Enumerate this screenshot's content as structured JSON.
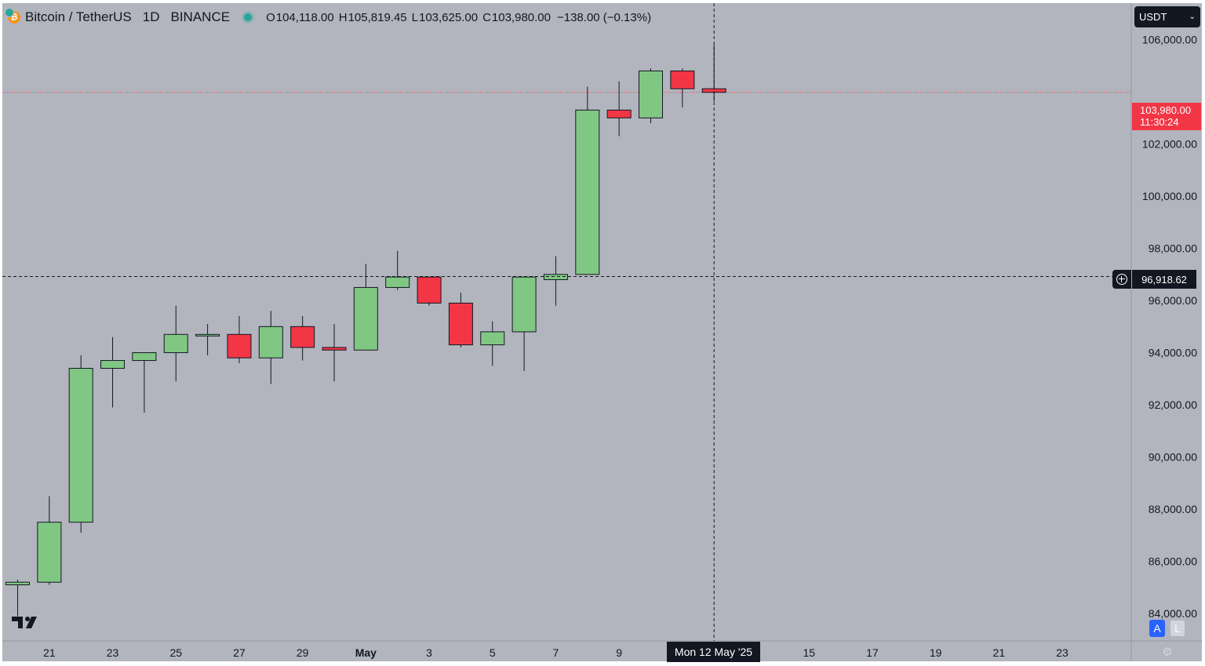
{
  "header": {
    "symbol": "Bitcoin / TetherUS",
    "timeframe": "1D",
    "exchange": "BINANCE",
    "open_label": "O",
    "open": "104,118.00",
    "high_label": "H",
    "high": "105,819.45",
    "low_label": "L",
    "low": "103,625.00",
    "close_label": "C",
    "close": "103,980.00",
    "change": "−138.00 (−0.13%)"
  },
  "toolbar": {
    "currency": "USDT",
    "auto_label": "A",
    "log_label": "L"
  },
  "last_price": {
    "value": "103,980.00",
    "countdown": "11:30:24"
  },
  "crosshair": {
    "price": "96,918.62",
    "date": "Mon 12 May '25",
    "price_value": 96918.62
  },
  "colors": {
    "up": "#81c784",
    "down": "#f23645",
    "background": "#b2b5be",
    "axis_bg": "#ffffff",
    "crosshair": "#131722"
  },
  "chart_data": {
    "type": "candlestick",
    "y_axis": {
      "ylim": [
        82950,
        107400
      ],
      "ticks": [
        84000,
        86000,
        88000,
        90000,
        92000,
        94000,
        96000,
        98000,
        100000,
        102000,
        104000,
        106000
      ],
      "tick_labels": [
        "84,000.00",
        "86,000.00",
        "88,000.00",
        "90,000.00",
        "92,000.00",
        "94,000.00",
        "96,000.00",
        "98,000.00",
        "100,000.00",
        "102,000.00",
        "",
        "106,000.00"
      ]
    },
    "x_axis": {
      "tick_labels": [
        "21",
        "23",
        "25",
        "27",
        "29",
        "May",
        "3",
        "5",
        "7",
        "9",
        "15",
        "17",
        "19",
        "21",
        "23"
      ],
      "tick_index": [
        1,
        3,
        5,
        7,
        9,
        11,
        13,
        15,
        17,
        19,
        25,
        27,
        29,
        31,
        33
      ]
    },
    "candles": [
      {
        "date": "2025-04-20",
        "open": 85100,
        "high": 85300,
        "low": 83900,
        "close": 85200
      },
      {
        "date": "2025-04-21",
        "open": 85200,
        "high": 88500,
        "low": 85100,
        "close": 87500
      },
      {
        "date": "2025-04-22",
        "open": 87500,
        "high": 93900,
        "low": 87100,
        "close": 93400
      },
      {
        "date": "2025-04-23",
        "open": 93400,
        "high": 94600,
        "low": 91900,
        "close": 93700
      },
      {
        "date": "2025-04-24",
        "open": 93700,
        "high": 94000,
        "low": 91700,
        "close": 94000
      },
      {
        "date": "2025-04-25",
        "open": 94000,
        "high": 95800,
        "low": 92900,
        "close": 94700
      },
      {
        "date": "2025-04-26",
        "open": 94700,
        "high": 95100,
        "low": 93900,
        "close": 94700
      },
      {
        "date": "2025-04-27",
        "open": 94700,
        "high": 95400,
        "low": 93600,
        "close": 93800
      },
      {
        "date": "2025-04-28",
        "open": 93800,
        "high": 95600,
        "low": 92800,
        "close": 95000
      },
      {
        "date": "2025-04-29",
        "open": 95000,
        "high": 95400,
        "low": 93700,
        "close": 94200
      },
      {
        "date": "2025-04-30",
        "open": 94200,
        "high": 95100,
        "low": 92900,
        "close": 94100
      },
      {
        "date": "2025-05-01",
        "open": 94100,
        "high": 97400,
        "low": 94100,
        "close": 96500
      },
      {
        "date": "2025-05-02",
        "open": 96500,
        "high": 97900,
        "low": 96400,
        "close": 96900
      },
      {
        "date": "2025-05-03",
        "open": 96900,
        "high": 96900,
        "low": 95800,
        "close": 95900
      },
      {
        "date": "2025-05-04",
        "open": 95900,
        "high": 96300,
        "low": 94200,
        "close": 94300
      },
      {
        "date": "2025-05-05",
        "open": 94300,
        "high": 95200,
        "low": 93500,
        "close": 94800
      },
      {
        "date": "2025-05-06",
        "open": 94800,
        "high": 96900,
        "low": 93300,
        "close": 96900
      },
      {
        "date": "2025-05-07",
        "open": 96800,
        "high": 97700,
        "low": 95800,
        "close": 97000
      },
      {
        "date": "2025-05-08",
        "open": 97000,
        "high": 104200,
        "low": 97000,
        "close": 103300
      },
      {
        "date": "2025-05-09",
        "open": 103300,
        "high": 104400,
        "low": 102300,
        "close": 103000
      },
      {
        "date": "2025-05-10",
        "open": 103000,
        "high": 104900,
        "low": 102800,
        "close": 104800
      },
      {
        "date": "2025-05-11",
        "open": 104800,
        "high": 104900,
        "low": 103400,
        "close": 104118
      },
      {
        "date": "2025-05-12",
        "open": 104118,
        "high": 105819.45,
        "low": 103625,
        "close": 103980
      }
    ]
  }
}
